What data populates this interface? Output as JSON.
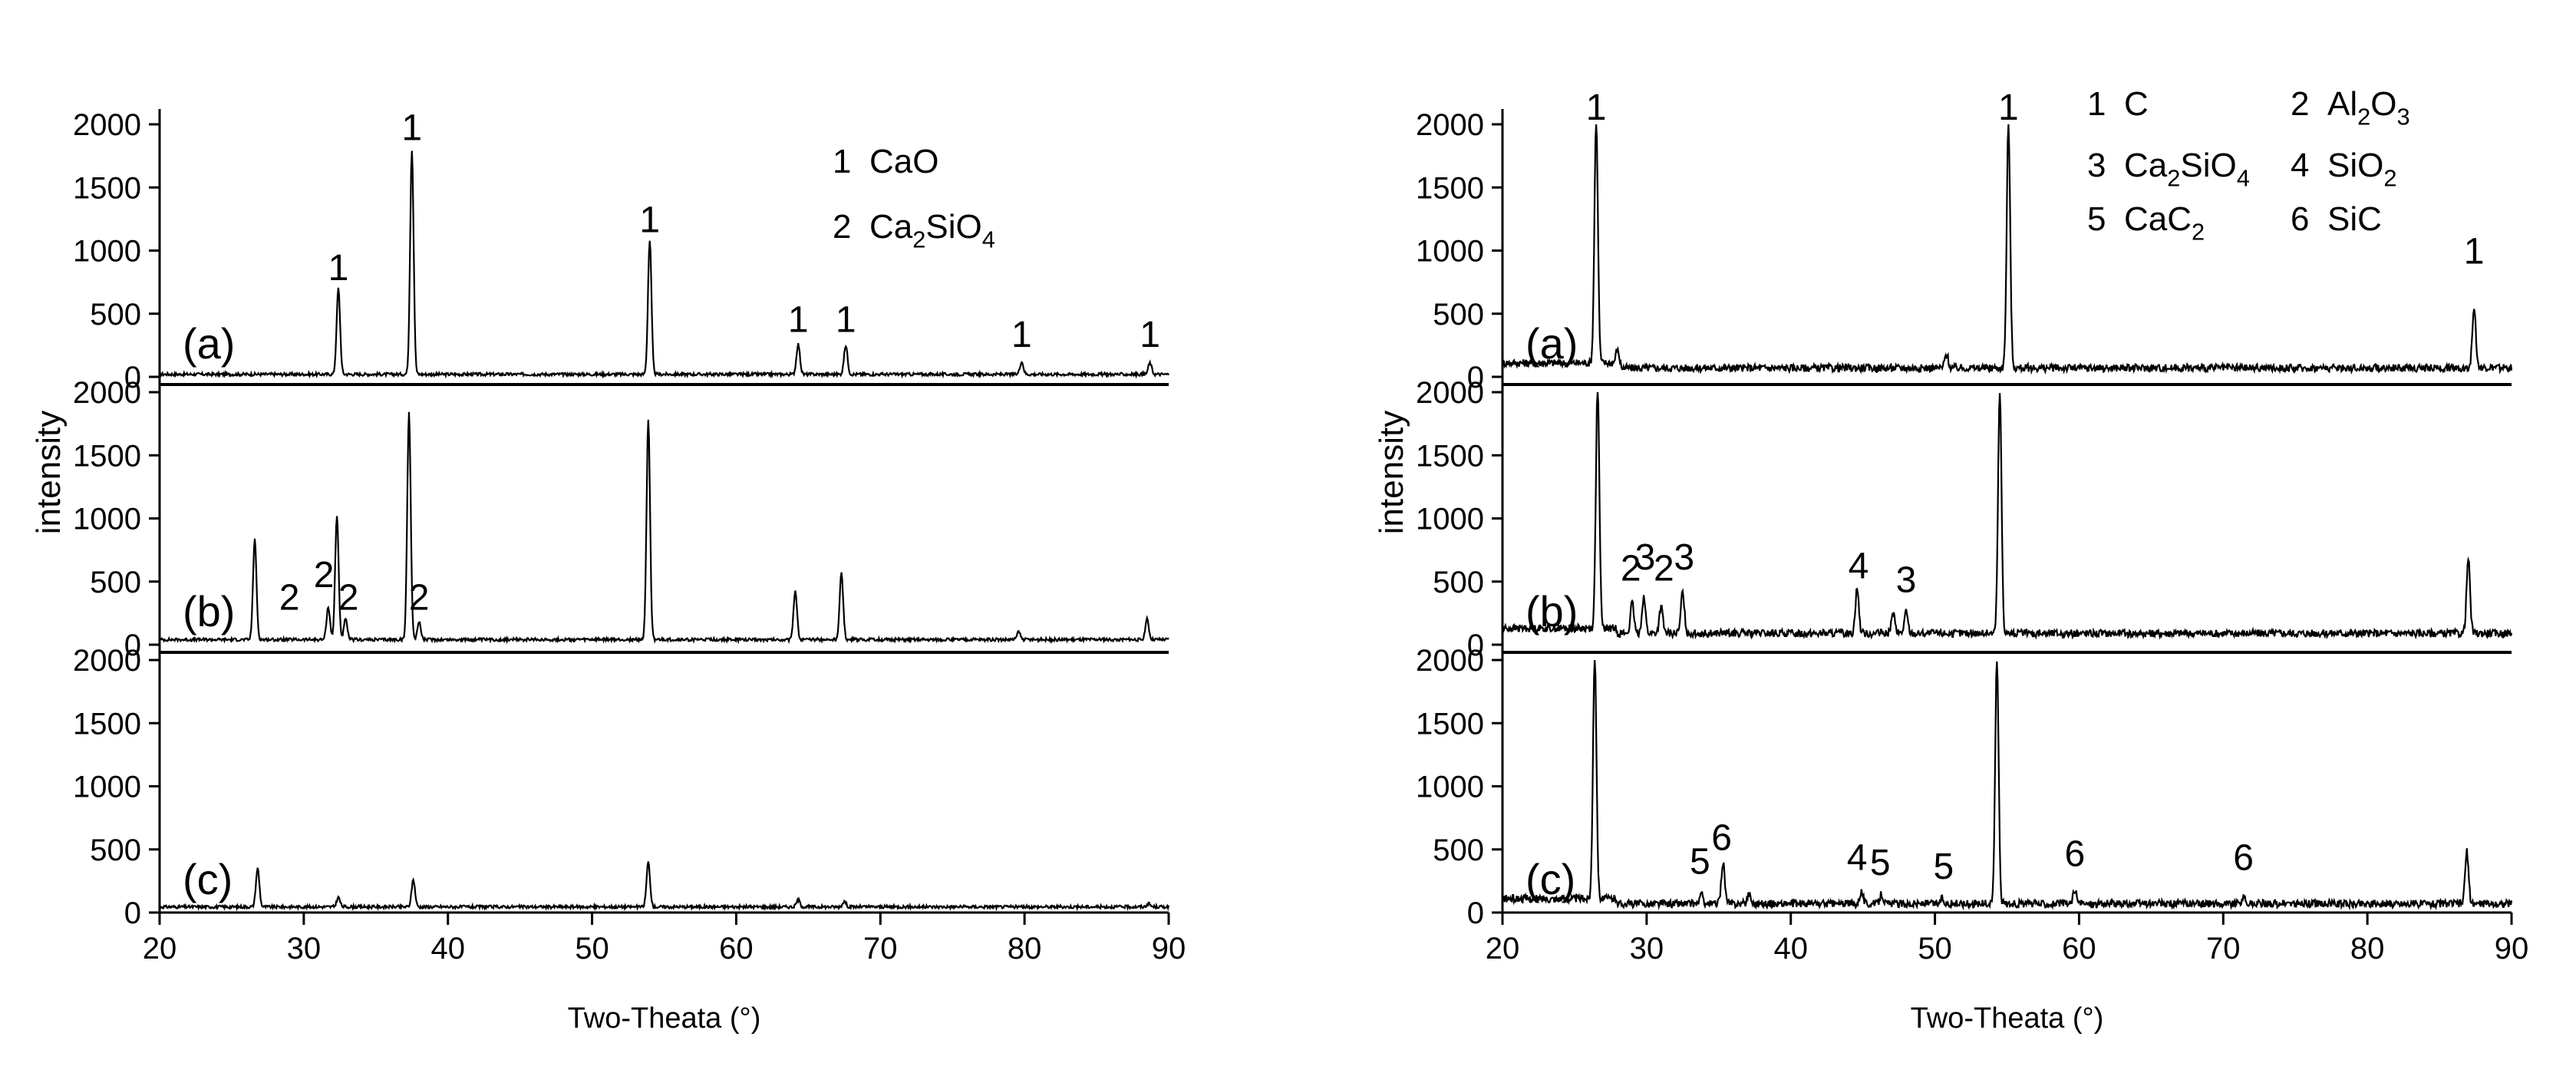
{
  "chart_data": [
    {
      "type": "line",
      "xlabel": "Two-Theata (°)",
      "ylabel": "intensity",
      "xlim": [
        20,
        90
      ],
      "ylim": [
        0,
        2000
      ],
      "xticks": [
        20,
        30,
        40,
        50,
        60,
        70,
        80,
        90
      ],
      "yticks": [
        0,
        500,
        1000,
        1500,
        2000
      ],
      "legend": [
        {
          "num": "1",
          "name": "CaO"
        },
        {
          "num": "2",
          "name": "Ca2SiO4"
        }
      ],
      "panels": [
        {
          "label": "(a)",
          "baseline": 20,
          "peaks": [
            [
              32.4,
              700
            ],
            [
              37.5,
              1800
            ],
            [
              54.0,
              1080
            ],
            [
              64.3,
              260
            ],
            [
              67.6,
              250
            ],
            [
              79.8,
              120
            ],
            [
              88.7,
              110
            ]
          ],
          "peak_labels": [
            {
              "text": "1",
              "x": 32.4,
              "y": 730
            },
            {
              "text": "1",
              "x": 37.5,
              "y": 1840
            },
            {
              "text": "1",
              "x": 54.0,
              "y": 1110
            },
            {
              "text": "1",
              "x": 64.3,
              "y": 320
            },
            {
              "text": "1",
              "x": 67.6,
              "y": 320
            },
            {
              "text": "1",
              "x": 79.8,
              "y": 200
            },
            {
              "text": "1",
              "x": 88.7,
              "y": 200
            }
          ]
        },
        {
          "label": "(b)",
          "baseline": 40,
          "peaks": [
            [
              26.6,
              830
            ],
            [
              31.7,
              300
            ],
            [
              32.3,
              1020
            ],
            [
              32.9,
              200
            ],
            [
              37.3,
              1840
            ],
            [
              38.0,
              180
            ],
            [
              53.9,
              1780
            ],
            [
              64.1,
              430
            ],
            [
              67.3,
              570
            ],
            [
              79.6,
              100
            ],
            [
              88.5,
              200
            ]
          ],
          "peak_labels": [
            {
              "text": "2",
              "x": 29.0,
              "y": 240
            },
            {
              "text": "2",
              "x": 31.4,
              "y": 420
            },
            {
              "text": "2",
              "x": 33.1,
              "y": 240
            },
            {
              "text": "2",
              "x": 38.0,
              "y": 240
            }
          ]
        },
        {
          "label": "(c)",
          "baseline": 45,
          "peaks": [
            [
              26.8,
              350
            ],
            [
              32.4,
              120
            ],
            [
              37.6,
              260
            ],
            [
              53.9,
              400
            ],
            [
              64.3,
              100
            ],
            [
              67.5,
              90
            ],
            [
              88.6,
              70
            ]
          ],
          "peak_labels": []
        }
      ]
    },
    {
      "type": "line",
      "xlabel": "Two-Theata (°)",
      "ylabel": "intensity",
      "xlim": [
        20,
        90
      ],
      "ylim": [
        0,
        2000
      ],
      "xticks": [
        20,
        30,
        40,
        50,
        60,
        70,
        80,
        90
      ],
      "yticks": [
        0,
        500,
        1000,
        1500,
        2000
      ],
      "legend": [
        {
          "num": "1",
          "name": "C"
        },
        {
          "num": "2",
          "name": "Al2O3"
        },
        {
          "num": "3",
          "name": "Ca2SiO4"
        },
        {
          "num": "4",
          "name": "SiO2"
        },
        {
          "num": "5",
          "name": "CaC2"
        },
        {
          "num": "6",
          "name": "SiC"
        }
      ],
      "panels": [
        {
          "label": "(a)",
          "baseline": 70,
          "peaks": [
            [
              26.5,
              2000
            ],
            [
              28.0,
              200
            ],
            [
              50.8,
              180
            ],
            [
              55.1,
              2000
            ],
            [
              87.4,
              560
            ]
          ],
          "peak_labels": [
            {
              "text": "1",
              "x": 26.5,
              "y": 2020
            },
            {
              "text": "1",
              "x": 55.1,
              "y": 2020
            },
            {
              "text": "1",
              "x": 87.4,
              "y": 860
            }
          ]
        },
        {
          "label": "(b)",
          "baseline": 90,
          "peaks": [
            [
              26.6,
              2000
            ],
            [
              29.0,
              330
            ],
            [
              29.8,
              380
            ],
            [
              31.0,
              300
            ],
            [
              32.5,
              420
            ],
            [
              44.6,
              450
            ],
            [
              47.1,
              250
            ],
            [
              48.0,
              260
            ],
            [
              54.5,
              2000
            ],
            [
              87.0,
              680
            ]
          ],
          "peak_labels": [
            {
              "text": "2",
              "x": 28.9,
              "y": 470
            },
            {
              "text": "3",
              "x": 29.9,
              "y": 560
            },
            {
              "text": "2",
              "x": 31.2,
              "y": 470
            },
            {
              "text": "3",
              "x": 32.6,
              "y": 560
            },
            {
              "text": "4",
              "x": 44.7,
              "y": 490
            },
            {
              "text": "3",
              "x": 48.0,
              "y": 380
            }
          ]
        },
        {
          "label": "(c)",
          "baseline": 70,
          "peaks": [
            [
              26.4,
              2000
            ],
            [
              33.8,
              140
            ],
            [
              35.3,
              400
            ],
            [
              37.1,
              150
            ],
            [
              44.9,
              170
            ],
            [
              46.3,
              150
            ],
            [
              50.5,
              110
            ],
            [
              54.3,
              2000
            ],
            [
              59.7,
              180
            ],
            [
              71.4,
              120
            ],
            [
              86.9,
              480
            ]
          ],
          "peak_labels": [
            {
              "text": "5",
              "x": 33.7,
              "y": 270
            },
            {
              "text": "6",
              "x": 35.2,
              "y": 460
            },
            {
              "text": "4",
              "x": 44.6,
              "y": 300
            },
            {
              "text": "5",
              "x": 46.2,
              "y": 260
            },
            {
              "text": "5",
              "x": 50.6,
              "y": 230
            },
            {
              "text": "6",
              "x": 59.7,
              "y": 330
            },
            {
              "text": "6",
              "x": 71.4,
              "y": 300
            }
          ]
        }
      ]
    }
  ]
}
